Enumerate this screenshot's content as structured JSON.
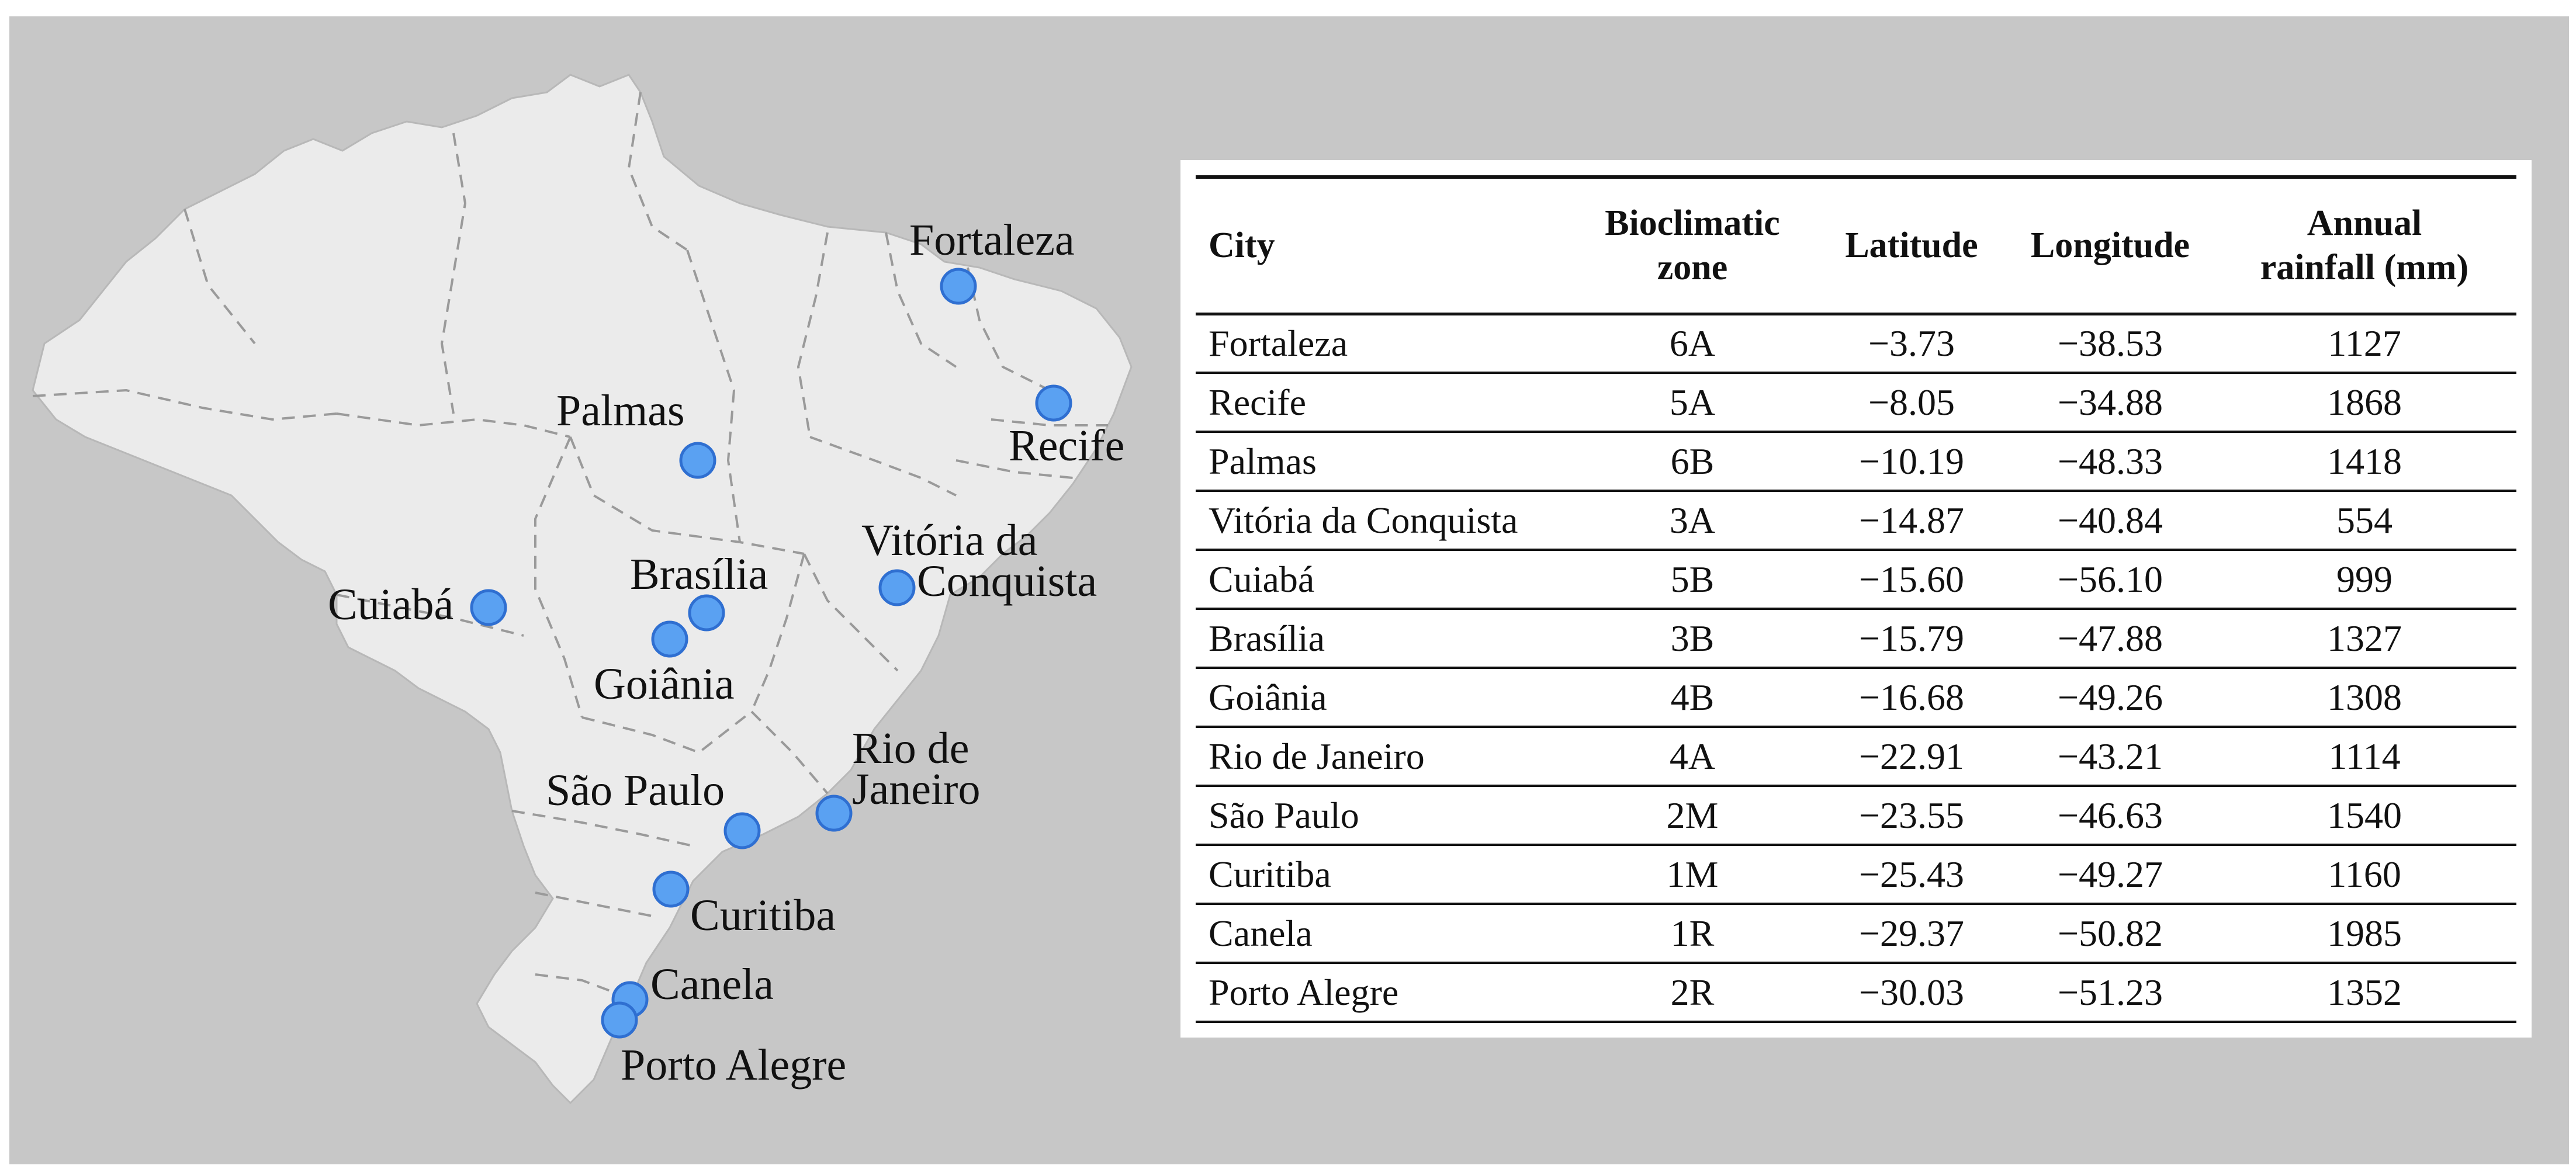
{
  "map": {
    "colors": {
      "background": "#c7c7c7",
      "land": "#ebebeb",
      "border": "#9a9a9a",
      "marker_fill": "#5aa1f2",
      "marker_stroke": "#2f6fd1"
    },
    "markers": [
      {
        "id": "fortaleza",
        "name": "Fortaleza"
      },
      {
        "id": "recife",
        "name": "Recife"
      },
      {
        "id": "palmas",
        "name": "Palmas"
      },
      {
        "id": "vitoria-da-conquista",
        "name": "Vitória da Conquista"
      },
      {
        "id": "cuiaba",
        "name": "Cuiabá"
      },
      {
        "id": "brasilia",
        "name": "Brasília"
      },
      {
        "id": "goiania",
        "name": "Goiânia"
      },
      {
        "id": "rio-de-janeiro",
        "name": "Rio de Janeiro"
      },
      {
        "id": "sao-paulo",
        "name": "São Paulo"
      },
      {
        "id": "curitiba",
        "name": "Curitiba"
      },
      {
        "id": "canela",
        "name": "Canela"
      },
      {
        "id": "porto-alegre",
        "name": "Porto Alegre"
      }
    ],
    "labels": {
      "fortaleza": "Fortaleza",
      "recife": "Recife",
      "palmas": "Palmas",
      "vitoria_line1": "Vitória da",
      "vitoria_line2": "Conquista",
      "cuiaba": "Cuiabá",
      "brasilia": "Brasília",
      "goiania": "Goiânia",
      "rio_line1": "Rio de",
      "rio_line2": "Janeiro",
      "sao_paulo": "São Paulo",
      "curitiba": "Curitiba",
      "canela": "Canela",
      "porto_alegre": "Porto Alegre"
    }
  },
  "table": {
    "headers": {
      "city": "City",
      "zone_line1": "Bioclimatic",
      "zone_line2": "zone",
      "latitude": "Latitude",
      "longitude": "Longitude",
      "rain_line1": "Annual",
      "rain_line2": "rainfall (mm)"
    },
    "rows": [
      {
        "city": "Fortaleza",
        "zone": "6A",
        "lat": "−3.73",
        "lon": "−38.53",
        "rain": "1127"
      },
      {
        "city": "Recife",
        "zone": "5A",
        "lat": "−8.05",
        "lon": "−34.88",
        "rain": "1868"
      },
      {
        "city": "Palmas",
        "zone": "6B",
        "lat": "−10.19",
        "lon": "−48.33",
        "rain": "1418"
      },
      {
        "city": "Vitória da Conquista",
        "zone": "3A",
        "lat": "−14.87",
        "lon": "−40.84",
        "rain": "554"
      },
      {
        "city": "Cuiabá",
        "zone": "5B",
        "lat": "−15.60",
        "lon": "−56.10",
        "rain": "999"
      },
      {
        "city": "Brasília",
        "zone": "3B",
        "lat": "−15.79",
        "lon": "−47.88",
        "rain": "1327"
      },
      {
        "city": "Goiânia",
        "zone": "4B",
        "lat": "−16.68",
        "lon": "−49.26",
        "rain": "1308"
      },
      {
        "city": "Rio de Janeiro",
        "zone": "4A",
        "lat": "−22.91",
        "lon": "−43.21",
        "rain": "1114"
      },
      {
        "city": "São Paulo",
        "zone": "2M",
        "lat": "−23.55",
        "lon": "−46.63",
        "rain": "1540"
      },
      {
        "city": "Curitiba",
        "zone": "1M",
        "lat": "−25.43",
        "lon": "−49.27",
        "rain": "1160"
      },
      {
        "city": "Canela",
        "zone": "1R",
        "lat": "−29.37",
        "lon": "−50.82",
        "rain": "1985"
      },
      {
        "city": "Porto Alegre",
        "zone": "2R",
        "lat": "−30.03",
        "lon": "−51.23",
        "rain": "1352"
      }
    ]
  }
}
